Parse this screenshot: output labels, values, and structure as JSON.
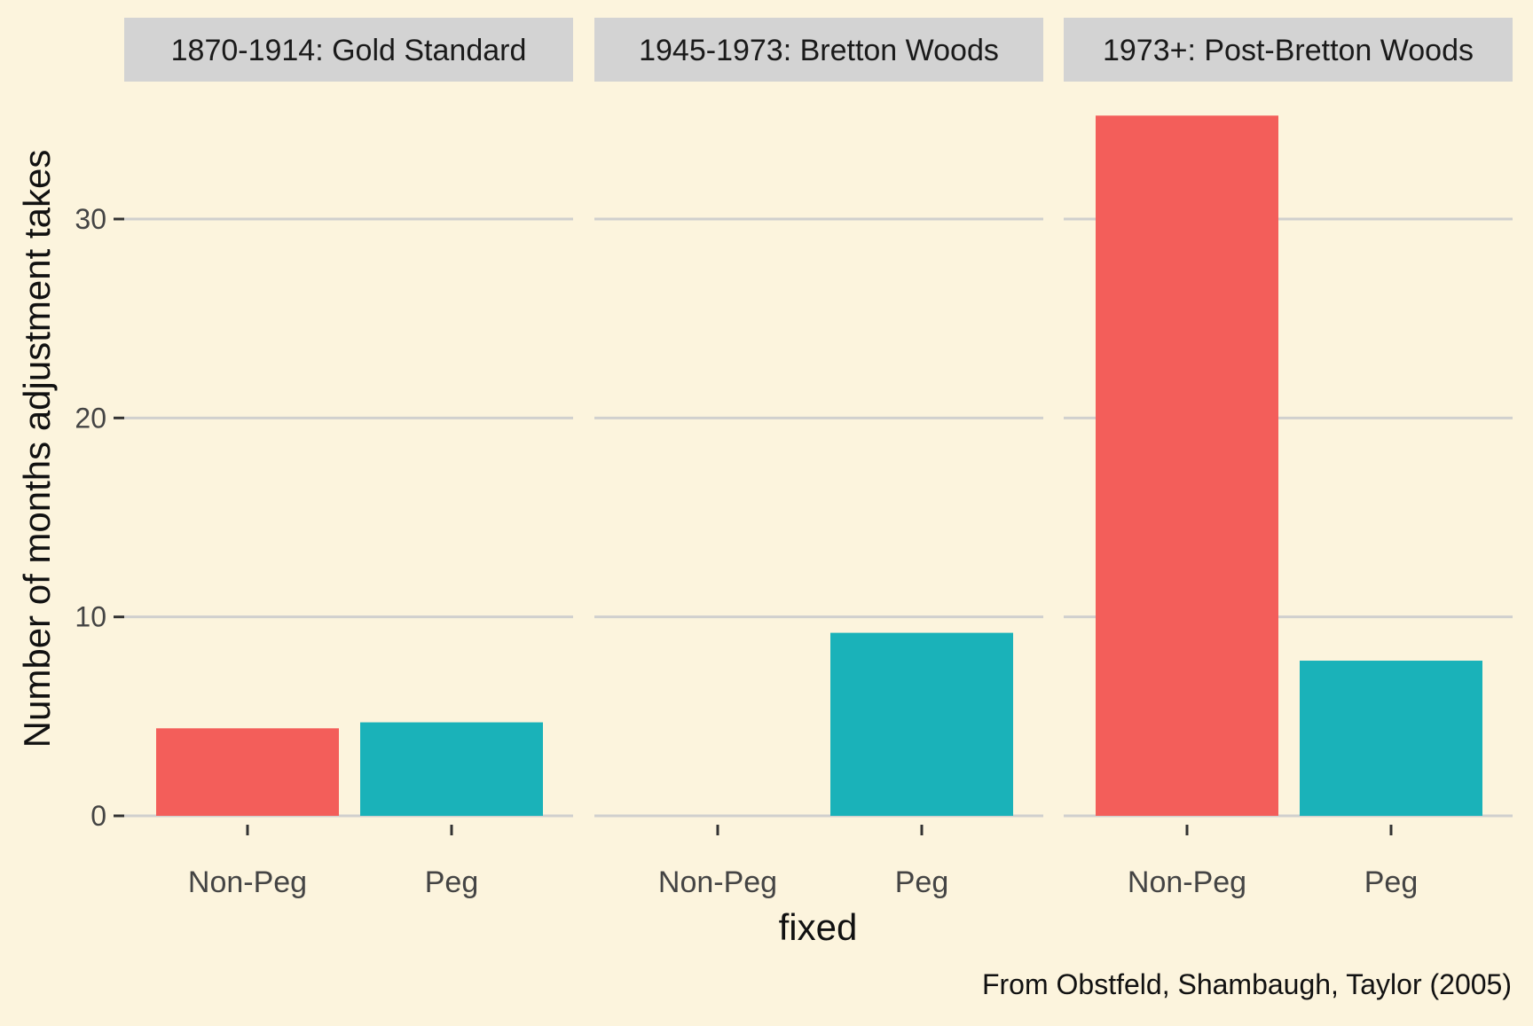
{
  "chart_data": {
    "type": "bar",
    "facet_variable": "period",
    "facets": [
      {
        "label": "1870-1914: Gold Standard",
        "values": {
          "Non-Peg": 4.4,
          "Peg": 4.7
        }
      },
      {
        "label": "1945-1973: Bretton Woods",
        "values": {
          "Non-Peg": null,
          "Peg": 9.2
        }
      },
      {
        "label": "1973+: Post-Bretton Woods",
        "values": {
          "Non-Peg": 35.2,
          "Peg": 7.8
        }
      }
    ],
    "categories": [
      "Non-Peg",
      "Peg"
    ],
    "xlabel": "fixed",
    "ylabel": "Number of months adjustment takes",
    "yticks": [
      0,
      10,
      20,
      30
    ],
    "ylim": [
      0,
      36.5
    ],
    "caption": "From Obstfeld, Shambaugh, Taylor (2005)",
    "grid": "horizontal",
    "legend": "none",
    "colors": {
      "Non-Peg": "#F35E5A",
      "Peg": "#1AB2B9"
    },
    "style": {
      "background": "#FCF4DD",
      "strip_fill": "#D3D3D3",
      "gridline": "#D0D0CE",
      "text": "#222222",
      "tick_text": "#444444"
    }
  }
}
